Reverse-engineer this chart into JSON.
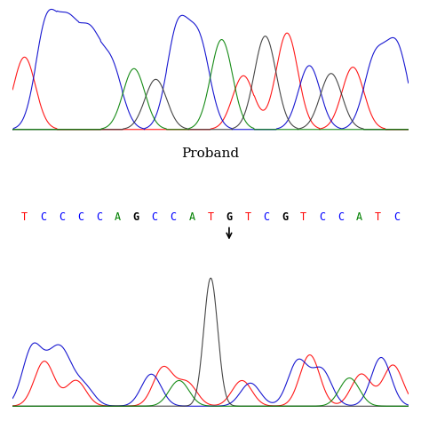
{
  "title_proband": "Proband",
  "sequence": [
    "T",
    "C",
    "C",
    "C",
    "C",
    "A",
    "G",
    "C",
    "C",
    "A",
    "T",
    "G",
    "T",
    "C",
    "G",
    "T",
    "C",
    "C",
    "A",
    "T",
    "C"
  ],
  "seq_colors": [
    "red",
    "blue",
    "blue",
    "blue",
    "blue",
    "green",
    "black",
    "blue",
    "blue",
    "green",
    "red",
    "black",
    "red",
    "blue",
    "black",
    "red",
    "blue",
    "blue",
    "green",
    "red",
    "blue"
  ],
  "mutation_index": 11,
  "bg_color": "#ffffff",
  "chromatogram_colors": {
    "A": "#008000",
    "T": "#ff0000",
    "C": "#0000cc",
    "G": "#000000"
  }
}
